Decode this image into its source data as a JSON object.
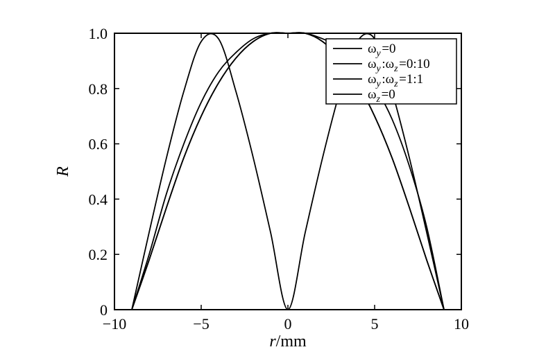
{
  "chart_data": {
    "type": "line",
    "title": "",
    "xlabel": "r/mm",
    "ylabel": "R",
    "xlim": [
      -10,
      10
    ],
    "ylim": [
      0,
      1.0
    ],
    "xticks": [
      {
        "value": -10,
        "label": "−10"
      },
      {
        "value": -5,
        "label": "−5"
      },
      {
        "value": 0,
        "label": "0"
      },
      {
        "value": 5,
        "label": "5"
      },
      {
        "value": 10,
        "label": "10"
      }
    ],
    "yticks": [
      {
        "value": 0,
        "label": "0"
      },
      {
        "value": 0.2,
        "label": "0.2"
      },
      {
        "value": 0.4,
        "label": "0.4"
      },
      {
        "value": 0.6,
        "label": "0.6"
      },
      {
        "value": 0.8,
        "label": "0.8"
      },
      {
        "value": 1.0,
        "label": "1.0"
      }
    ],
    "grid": false,
    "legend_position": "top-right",
    "line_color": "#000000",
    "series": [
      {
        "name": "ωy=0",
        "x": [
          -9.0,
          -8.0,
          -7.0,
          -6.0,
          -5.0,
          -4.0,
          -3.0,
          -2.0,
          -1.0,
          0.0,
          1.0,
          2.0,
          3.0,
          4.0,
          5.0,
          6.0,
          7.0,
          8.0,
          9.0
        ],
        "y": [
          0.0,
          0.18,
          0.37,
          0.55,
          0.7,
          0.82,
          0.91,
          0.97,
          1.0,
          1.0,
          1.0,
          0.97,
          0.91,
          0.82,
          0.7,
          0.55,
          0.37,
          0.18,
          0.0
        ]
      },
      {
        "name": "ωy:ωz=0:10",
        "x": [
          -9.0,
          -8.0,
          -7.0,
          -6.0,
          -5.0,
          -4.0,
          -3.0,
          -2.0,
          -1.0,
          0.0,
          1.0,
          2.0,
          3.0,
          4.0,
          5.0,
          6.0,
          7.0,
          8.0,
          9.0
        ],
        "y": [
          0.0,
          0.2,
          0.42,
          0.6,
          0.75,
          0.86,
          0.93,
          0.98,
          1.0,
          1.0,
          1.0,
          0.98,
          0.95,
          0.9,
          0.81,
          0.69,
          0.52,
          0.3,
          0.0
        ]
      },
      {
        "name": "ωy:ωz=1:1",
        "x": [
          -9.0,
          -8.0,
          -7.0,
          -6.0,
          -5.0,
          -4.0,
          -3.0,
          -2.0,
          -1.0,
          0.0,
          1.0,
          2.0,
          3.0,
          4.0,
          5.0,
          6.0,
          7.0,
          8.0,
          9.0
        ],
        "y": [
          0.0,
          0.28,
          0.55,
          0.79,
          0.97,
          0.98,
          0.79,
          0.55,
          0.28,
          0.0,
          0.28,
          0.55,
          0.79,
          0.97,
          0.98,
          0.79,
          0.55,
          0.28,
          0.0
        ]
      },
      {
        "name": "ωz=0",
        "x": [
          -9.0,
          -8.0,
          -7.0,
          -6.0,
          -5.0,
          -4.0,
          -3.0,
          -2.0,
          -1.0,
          0.0,
          1.0,
          2.0,
          3.0,
          4.0,
          5.0,
          6.0,
          7.0,
          8.0,
          9.0
        ],
        "y": [
          0.0,
          0.18,
          0.37,
          0.55,
          0.7,
          0.82,
          0.91,
          0.97,
          1.0,
          1.0,
          1.0,
          0.97,
          0.91,
          0.82,
          0.7,
          0.55,
          0.37,
          0.18,
          0.0
        ]
      }
    ],
    "legend": {
      "entries": [
        {
          "base": "ω",
          "sub1": "y",
          "mid": "=0",
          "sub2": "",
          "tail": ""
        },
        {
          "base": "ω",
          "sub1": "y",
          "mid": ":ω",
          "sub2": "z",
          "tail": "=0:10"
        },
        {
          "base": "ω",
          "sub1": "y",
          "mid": ":ω",
          "sub2": "z",
          "tail": "=1:1"
        },
        {
          "base": "ω",
          "sub1": "z",
          "mid": "=0",
          "sub2": "",
          "tail": ""
        }
      ]
    }
  }
}
